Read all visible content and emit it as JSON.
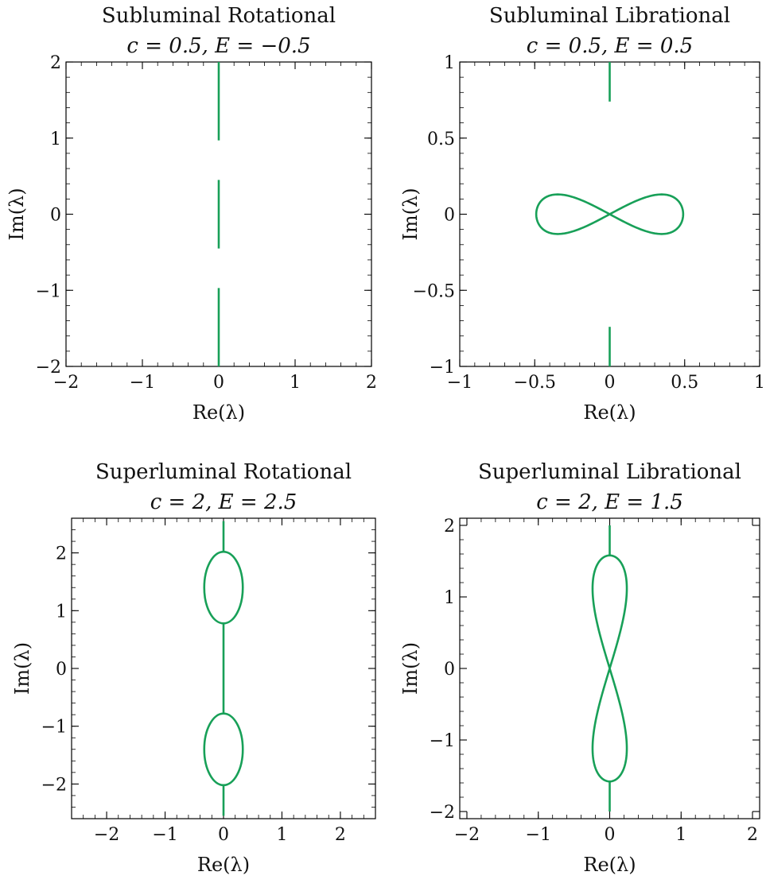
{
  "colors": {
    "series": "#18a058",
    "axes": "#000000",
    "background": "#ffffff"
  },
  "chart_data": [
    {
      "type": "line",
      "title": "Subluminal Rotational",
      "subtitle": "c = 0.5, E = −0.5",
      "xlabel": "Re(λ)",
      "ylabel": "Im(λ)",
      "xlim": [
        -2,
        2
      ],
      "ylim": [
        -2,
        2
      ],
      "xticks": [
        -2,
        -1,
        0,
        1,
        2
      ],
      "yticks": [
        -2,
        -1,
        0,
        1,
        2
      ],
      "xtick_labels": [
        "−2",
        "−1",
        "0",
        "1",
        "2"
      ],
      "ytick_labels": [
        "−2",
        "−1",
        "0",
        "1",
        "2"
      ],
      "minor_step": 0.2,
      "grid": false,
      "segments": [
        {
          "shape": "segment",
          "x": 0,
          "y_from": 0.97,
          "y_to": 2.0
        },
        {
          "shape": "segment",
          "x": 0,
          "y_from": -0.45,
          "y_to": 0.45
        },
        {
          "shape": "segment",
          "x": 0,
          "y_from": -2.0,
          "y_to": -0.97
        }
      ]
    },
    {
      "type": "line",
      "title": "Subluminal Librational",
      "subtitle": "c = 0.5, E = 0.5",
      "xlabel": "Re(λ)",
      "ylabel": "Im(λ)",
      "xlim": [
        -1,
        1
      ],
      "ylim": [
        -1,
        1
      ],
      "xticks": [
        -1,
        -0.5,
        0,
        0.5,
        1
      ],
      "yticks": [
        -1,
        -0.5,
        0,
        0.5,
        1
      ],
      "xtick_labels": [
        "−1",
        "−0.5",
        "0",
        "0.5",
        "1"
      ],
      "ytick_labels": [
        "−1",
        "−0.5",
        "0",
        "0.5",
        "1"
      ],
      "minor_step": 0.1,
      "grid": false,
      "segments": [
        {
          "shape": "segment",
          "x": 0,
          "y_from": 0.74,
          "y_to": 1.0
        },
        {
          "shape": "segment",
          "x": 0,
          "y_from": -1.0,
          "y_to": -0.74
        },
        {
          "shape": "figure-eight-horizontal",
          "cx": 0,
          "cy": 0,
          "half_width": 0.49,
          "half_height": 0.13
        }
      ]
    },
    {
      "type": "line",
      "title": "Superluminal Rotational",
      "subtitle": "c = 2, E = 2.5",
      "xlabel": "Re(λ)",
      "ylabel": "Im(λ)",
      "xlim": [
        -2.6,
        2.6
      ],
      "ylim": [
        -2.6,
        2.6
      ],
      "xticks": [
        -2,
        -1,
        0,
        1,
        2
      ],
      "yticks": [
        -2,
        -1,
        0,
        1,
        2
      ],
      "xtick_labels": [
        "−2",
        "−1",
        "0",
        "1",
        "2"
      ],
      "ytick_labels": [
        "−2",
        "−1",
        "0",
        "1",
        "2"
      ],
      "minor_step": 0.2,
      "grid": false,
      "segments": [
        {
          "shape": "segment",
          "x": 0,
          "y_from": 2.02,
          "y_to": 2.55
        },
        {
          "shape": "ellipse",
          "cx": 0,
          "cy": 1.4,
          "rx": 0.33,
          "ry": 0.62
        },
        {
          "shape": "segment",
          "x": 0,
          "y_from": -0.78,
          "y_to": 0.78
        },
        {
          "shape": "ellipse",
          "cx": 0,
          "cy": -1.4,
          "rx": 0.33,
          "ry": 0.62
        },
        {
          "shape": "segment",
          "x": 0,
          "y_from": -2.55,
          "y_to": -2.02
        }
      ]
    },
    {
      "type": "line",
      "title": "Superluminal Librational",
      "subtitle": "c = 2, E = 1.5",
      "xlabel": "Re(λ)",
      "ylabel": "Im(λ)",
      "xlim": [
        -2.1,
        2.1
      ],
      "ylim": [
        -2.1,
        2.1
      ],
      "xticks": [
        -2,
        -1,
        0,
        1,
        2
      ],
      "yticks": [
        -2,
        -1,
        0,
        1,
        2
      ],
      "xtick_labels": [
        "−2",
        "−1",
        "0",
        "1",
        "2"
      ],
      "ytick_labels": [
        "−2",
        "−1",
        "0",
        "1",
        "2"
      ],
      "minor_step": 0.2,
      "grid": false,
      "segments": [
        {
          "shape": "segment",
          "x": 0,
          "y_from": 1.58,
          "y_to": 2.0
        },
        {
          "shape": "figure-eight-vertical",
          "cx": 0,
          "cy": 0,
          "half_width": 0.24,
          "half_height": 1.58
        },
        {
          "shape": "segment",
          "x": 0,
          "y_from": -2.0,
          "y_to": -1.58
        }
      ]
    }
  ]
}
